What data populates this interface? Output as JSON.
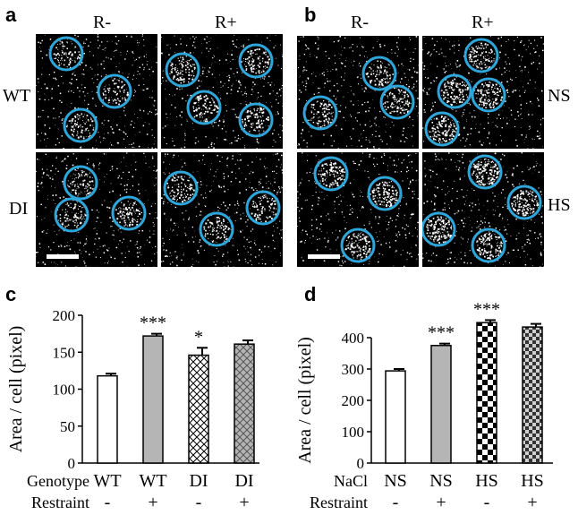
{
  "panels": {
    "a": {
      "letter": "a",
      "col_labels": [
        "R-",
        "R+"
      ],
      "row_labels": [
        "WT",
        "DI"
      ]
    },
    "b": {
      "letter": "b",
      "col_labels": [
        "R-",
        "R+"
      ],
      "row_labels": [
        "NS",
        "HS"
      ]
    },
    "c": {
      "letter": "c"
    },
    "d": {
      "letter": "d"
    }
  },
  "colors": {
    "circle": "#2fa6d9",
    "bar_gray": "#b5b5b5",
    "micro_bg": "#000000"
  },
  "chart_data": [
    {
      "type": "bar",
      "panel": "c",
      "ylabel": "Area / cell (pixel)",
      "ylim": [
        0,
        200
      ],
      "yticks": [
        0,
        50,
        100,
        150,
        200
      ],
      "row_labels": [
        "Genotype",
        "Restraint"
      ],
      "categories": [
        {
          "genotype": "WT",
          "restraint": "-"
        },
        {
          "genotype": "WT",
          "restraint": "+"
        },
        {
          "genotype": "DI",
          "restraint": "-"
        },
        {
          "genotype": "DI",
          "restraint": "+"
        }
      ],
      "values": [
        118,
        172,
        146,
        161
      ],
      "errors": [
        3,
        3,
        10,
        5
      ],
      "fills": [
        "white",
        "gray",
        "diag-cross",
        "gray-cross"
      ],
      "significance": [
        "",
        "***",
        "*",
        ""
      ]
    },
    {
      "type": "bar",
      "panel": "d",
      "ylabel": "Area / cell (pixel)",
      "ylim": [
        0,
        500
      ],
      "yticks": [
        0,
        100,
        200,
        300,
        400
      ],
      "row_labels": [
        "NaCl",
        "Restraint"
      ],
      "categories": [
        {
          "genotype": "NS",
          "restraint": "-"
        },
        {
          "genotype": "NS",
          "restraint": "+"
        },
        {
          "genotype": "HS",
          "restraint": "-"
        },
        {
          "genotype": "HS",
          "restraint": "+"
        }
      ],
      "values": [
        294,
        375,
        448,
        434
      ],
      "errors": [
        6,
        6,
        8,
        10
      ],
      "fills": [
        "white",
        "gray",
        "checker",
        "checker-gray"
      ],
      "significance": [
        "",
        "***",
        "***",
        ""
      ]
    }
  ]
}
